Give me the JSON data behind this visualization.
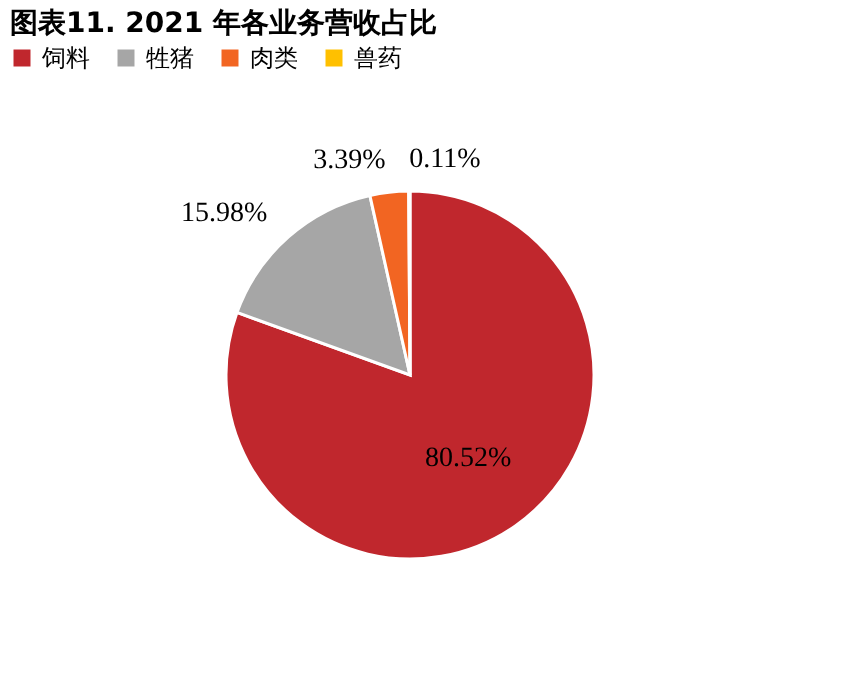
{
  "chart_data": {
    "type": "pie",
    "title": "图表11. 2021 年各业务营收占比",
    "categories": [
      "饲料",
      "牲猪",
      "肉类",
      "兽药"
    ],
    "values": [
      80.52,
      15.98,
      3.39,
      0.11
    ],
    "colors": [
      "#c0272d",
      "#a6a6a6",
      "#f26522",
      "#ffc000"
    ],
    "value_labels": [
      "80.52%",
      "15.98%",
      "3.39%",
      "0.11%"
    ],
    "legend": "top"
  }
}
